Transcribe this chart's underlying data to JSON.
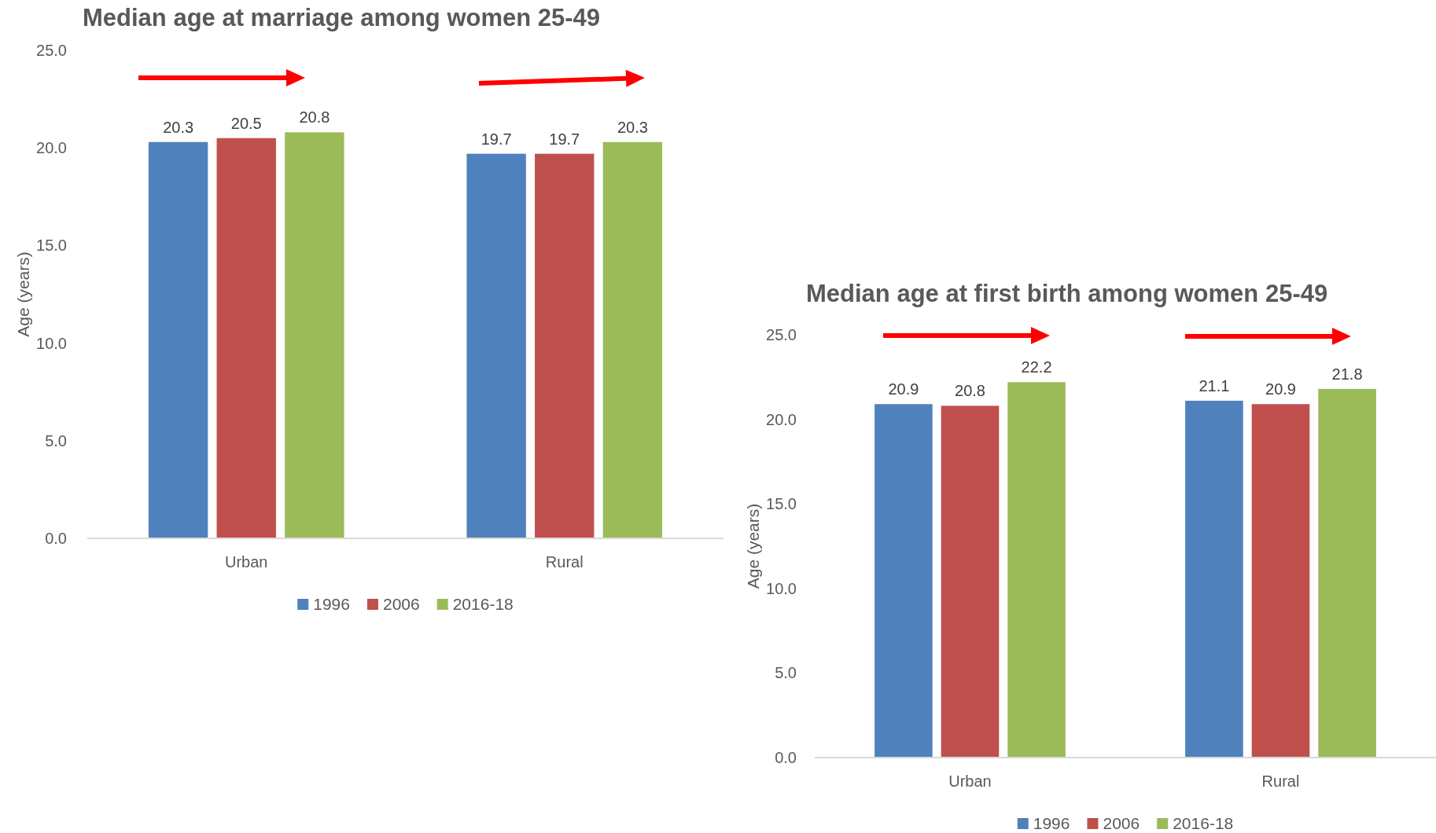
{
  "chart_data": [
    {
      "type": "bar",
      "title": "Median age at marriage among women 25-49",
      "ylabel": "Age (years)",
      "categories": [
        "Urban",
        "Rural"
      ],
      "series": [
        {
          "name": "1996",
          "color": "#4f81bd",
          "values": [
            20.3,
            19.7
          ]
        },
        {
          "name": "2006",
          "color": "#c0504d",
          "values": [
            20.5,
            19.7
          ]
        },
        {
          "name": "2016-18",
          "color": "#9bbb59",
          "values": [
            20.8,
            20.3
          ]
        }
      ],
      "ylim": [
        0,
        25
      ],
      "yticks": [
        {
          "value": 0,
          "label": "0.0"
        },
        {
          "value": 5,
          "label": "5.0"
        },
        {
          "value": 10,
          "label": "10.0"
        },
        {
          "value": 15,
          "label": "15.0"
        },
        {
          "value": 20,
          "label": "20.0"
        },
        {
          "value": 25,
          "label": "25.0"
        }
      ],
      "grid": false,
      "legend": "bottom",
      "data_labels": true
    },
    {
      "type": "bar",
      "title": "Median age at first birth among women 25-49",
      "ylabel": "Age (years)",
      "categories": [
        "Urban",
        "Rural"
      ],
      "series": [
        {
          "name": "1996",
          "color": "#4f81bd",
          "values": [
            20.9,
            21.1
          ]
        },
        {
          "name": "2006",
          "color": "#c0504d",
          "values": [
            20.8,
            20.9
          ]
        },
        {
          "name": "2016-18",
          "color": "#9bbb59",
          "values": [
            22.2,
            21.8
          ]
        }
      ],
      "ylim": [
        0,
        25
      ],
      "yticks": [
        {
          "value": 0,
          "label": "0.0"
        },
        {
          "value": 5,
          "label": "5.0"
        },
        {
          "value": 10,
          "label": "10.0"
        },
        {
          "value": 15,
          "label": "15.0"
        },
        {
          "value": 20,
          "label": "20.0"
        },
        {
          "value": 25,
          "label": "25.0"
        }
      ],
      "grid": false,
      "legend": "bottom",
      "data_labels": true
    }
  ]
}
